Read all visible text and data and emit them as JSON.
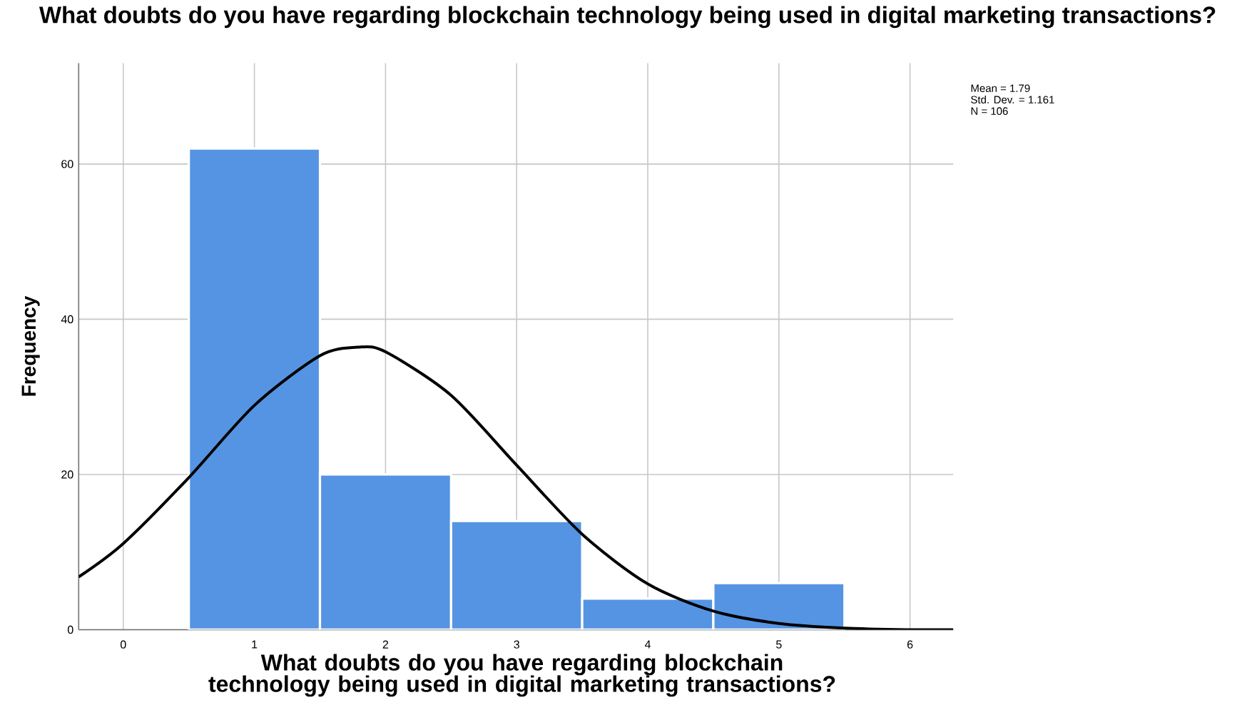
{
  "chart_data": {
    "type": "histogram",
    "title": "What  doubts  do you have regarding blockchain technology being used in digital marketing transactions?",
    "xlabel": "What  doubts  do you have regarding blockchain technology being used in digital marketing transactions?",
    "ylabel": "Frequency",
    "bins": [
      0.5,
      1.5,
      2.5,
      3.5,
      4.5,
      5.5
    ],
    "values": [
      62,
      20,
      14,
      4,
      6
    ],
    "color": "#5594e3",
    "series": [
      {
        "type": "line",
        "color": "#000000",
        "x": [
          -0.34,
          0,
          0.5,
          1,
          1.5,
          1.79,
          2,
          2.5,
          3,
          3.5,
          4,
          4.5,
          5,
          5.5,
          6,
          6.33
        ],
        "values": [
          6.8,
          11.1,
          19.6,
          28.9,
          35.3,
          36.4,
          35.8,
          30.2,
          21.2,
          12.3,
          5.9,
          2.4,
          0.8,
          0.2,
          0,
          0
        ]
      }
    ],
    "xlim": [
      -0.34,
      6.33
    ],
    "ylim": [
      0,
      73
    ],
    "xticks": [
      0,
      1,
      2,
      3,
      4,
      5,
      6
    ],
    "yticks": [
      0,
      20,
      40,
      60
    ],
    "grid": true,
    "annotations": [
      "Mean = 1.79",
      "Std. Dev. = 1.161",
      "N = 106"
    ]
  }
}
